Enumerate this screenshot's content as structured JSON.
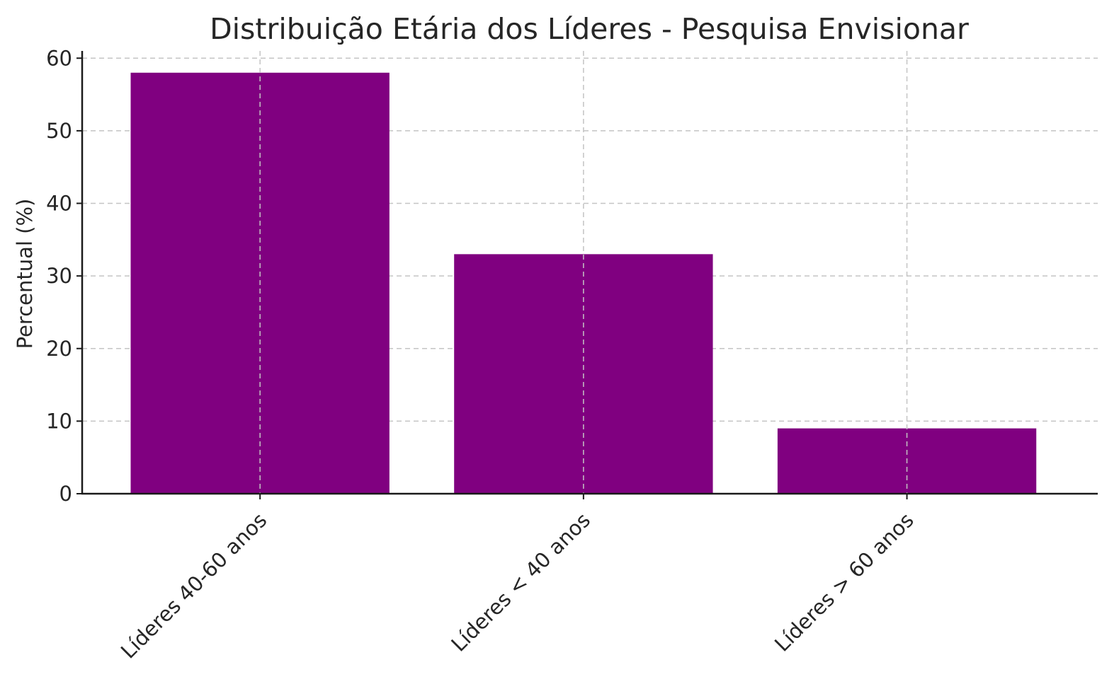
{
  "chart_data": {
    "type": "bar",
    "title": "Distribuição Etária dos Líderes - Pesquisa Envisionar",
    "xlabel": "",
    "ylabel": "Percentual (%)",
    "categories": [
      "Líderes 40-60 anos",
      "Líderes < 40 anos",
      "Líderes > 60 anos"
    ],
    "values": [
      58,
      33,
      9
    ],
    "ylim": [
      0,
      61
    ],
    "yticks": [
      0,
      10,
      20,
      30,
      40,
      50,
      60
    ],
    "ytick_labels": [
      "0",
      "10",
      "20",
      "30",
      "40",
      "50",
      "60"
    ],
    "x_tick_rotation": "45°",
    "grid": true,
    "legend": "none",
    "bar_color": "#800080"
  }
}
